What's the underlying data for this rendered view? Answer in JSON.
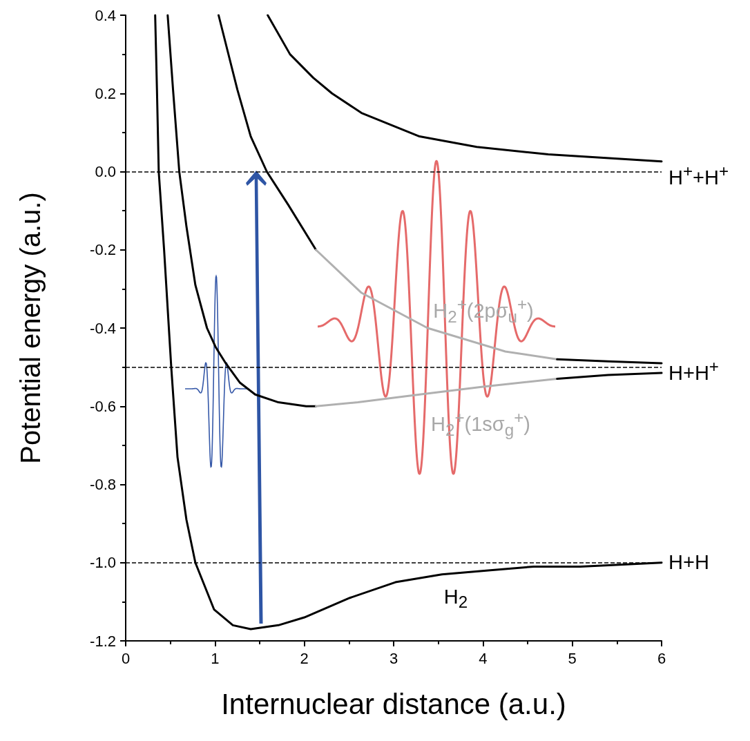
{
  "chart_data": {
    "type": "line",
    "xlabel": "Internuclear distance (a.u.)",
    "ylabel": "Potential energy (a.u.)",
    "xlim": [
      0,
      6
    ],
    "ylim": [
      -1.2,
      0.4
    ],
    "xticks": [
      0,
      1,
      2,
      3,
      4,
      5,
      6
    ],
    "yticks": [
      {
        "value": -1.2,
        "label": "-1.2"
      },
      {
        "value": -1.0,
        "label": "-1.0"
      },
      {
        "value": -0.8,
        "label": "-0.8"
      },
      {
        "value": -0.6,
        "label": "-0.6"
      },
      {
        "value": -0.4,
        "label": "-0.4"
      },
      {
        "value": -0.2,
        "label": "-0.2"
      },
      {
        "value": 0,
        "label": "0.0"
      },
      {
        "value": 0.2,
        "label": "0.2"
      },
      {
        "value": 0.4,
        "label": "0.4"
      }
    ],
    "series": [
      {
        "color": "#000000",
        "x": [
          0.33,
          0.35,
          0.37,
          0.43,
          0.51,
          0.58,
          0.68,
          0.78,
          0.99,
          1.2,
          1.4,
          1.71,
          2.0,
          2.51,
          3.02,
          3.54,
          4.06,
          4.57,
          5.09,
          6.0
        ],
        "values": [
          0.4,
          0.21,
          0,
          -0.2,
          -0.5,
          -0.73,
          -0.89,
          -1.0,
          -1.12,
          -1.16,
          -1.17,
          -1.16,
          -1.14,
          -1.09,
          -1.05,
          -1.03,
          -1.02,
          -1.01,
          -1.01,
          -1.0
        ]
      },
      {
        "color": "#000000",
        "x": [
          0.47,
          0.53,
          0.6,
          0.68,
          0.78,
          0.91,
          1.01,
          1.12,
          1.28,
          1.45,
          1.71,
          2.02,
          2.13
        ],
        "values": [
          0.4,
          0.21,
          0,
          -0.14,
          -0.29,
          -0.4,
          -0.45,
          -0.49,
          -0.54,
          -0.57,
          -0.59,
          -0.6,
          -0.6
        ]
      },
      {
        "color": "#b0b0b0",
        "x": [
          2.13,
          2.6,
          3.29,
          4.0,
          4.83
        ],
        "values": [
          -0.6,
          -0.59,
          -0.57,
          -0.55,
          -0.53
        ]
      },
      {
        "color": "#000000",
        "x": [
          4.83,
          5.4,
          6.0
        ],
        "values": [
          -0.53,
          -0.52,
          -0.515
        ]
      },
      {
        "color": "#000000",
        "x": [
          1.04,
          1.25,
          1.4,
          1.58,
          1.82,
          2.13
        ],
        "values": [
          0.4,
          0.21,
          0.09,
          0,
          -0.085,
          -0.2
        ]
      },
      {
        "color": "#b0b0b0",
        "x": [
          2.13,
          2.64,
          3.38,
          4.25,
          4.83
        ],
        "values": [
          -0.2,
          -0.31,
          -0.4,
          -0.46,
          -0.48
        ]
      },
      {
        "color": "#000000",
        "x": [
          4.83,
          5.4,
          6.0
        ],
        "values": [
          -0.48,
          -0.485,
          -0.49
        ]
      },
      {
        "color": "#000000",
        "x": [
          1.59,
          1.84,
          2.1,
          2.31,
          2.64,
          3.29,
          3.93,
          4.73,
          6.0
        ],
        "values": [
          0.4,
          0.3,
          0.24,
          0.2,
          0.15,
          0.09,
          0.063,
          0.044,
          0.026
        ]
      }
    ],
    "ref_lines": [
      {
        "axis": "y",
        "value": 0,
        "label": "H$^{+}$+H$^{+}$",
        "color": "#000000",
        "line_style": "dashed"
      },
      {
        "axis": "y",
        "value": -0.5,
        "label": "H+H$^{+}$",
        "color": "#000000",
        "line_style": "dashed"
      },
      {
        "axis": "y",
        "value": -1.0,
        "label": "H+H",
        "color": "#000000",
        "line_style": "dashed"
      }
    ],
    "annotations": [
      "H$_{2}$",
      "H$_{2}$$^{+}$(2pσ$_{u}$$^{+}$)",
      "H$_{2}$$^{+}$(1sσ$_{g}$$^{+}$)"
    ],
    "grid": false
  }
}
